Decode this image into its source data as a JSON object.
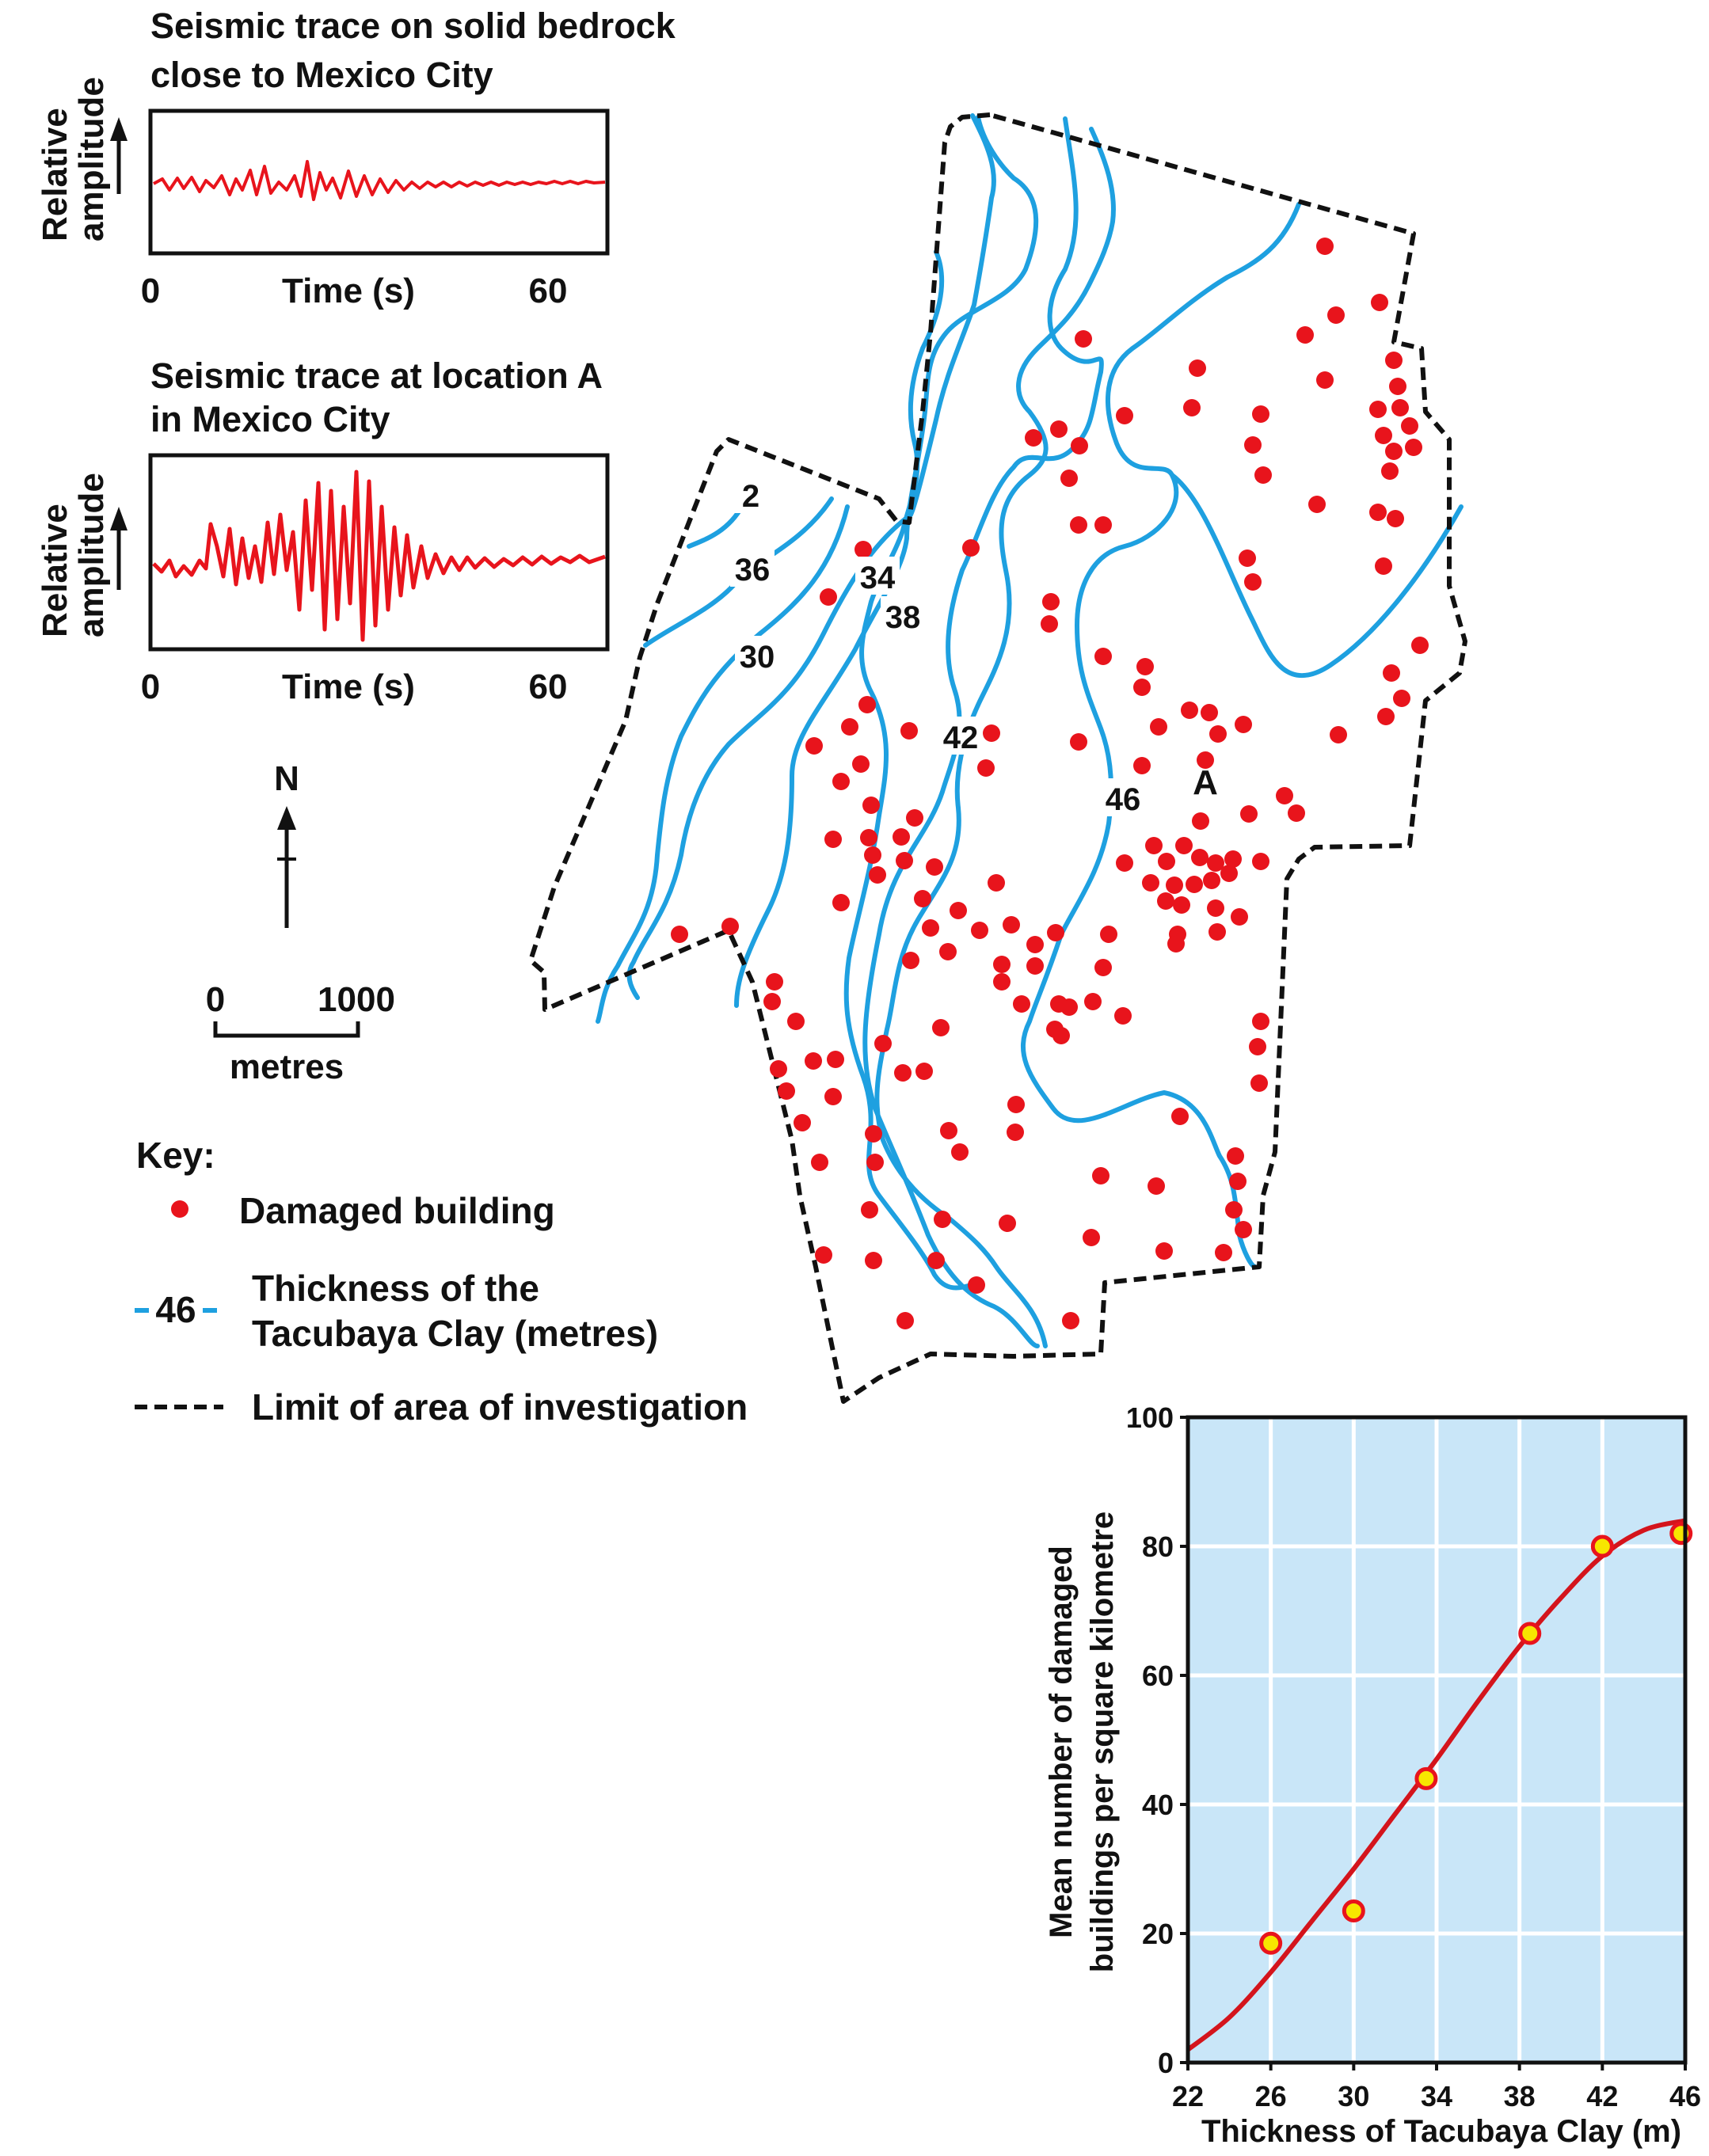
{
  "trace_top": {
    "title_line1": "Seismic trace on solid bedrock",
    "title_line2": "close to Mexico City",
    "ylabel_line1": "Relative",
    "ylabel_line2": "amplitude",
    "xlabel": "Time (s)",
    "tick_0": "0",
    "tick_60": "60"
  },
  "trace_bottom": {
    "title_line1": "Seismic trace at location A",
    "title_line2": "in Mexico City",
    "ylabel_line1": "Relative",
    "ylabel_line2": "amplitude",
    "xlabel": "Time (s)",
    "tick_0": "0",
    "tick_60": "60"
  },
  "north_label": "N",
  "scale": {
    "start": "0",
    "end": "1000",
    "unit": "metres"
  },
  "key": {
    "title": "Key:",
    "damaged": "Damaged building",
    "contour_sample": "46",
    "contour_line1": "Thickness of the",
    "contour_line2": "Tacubaya Clay (metres)",
    "limit": "Limit of area of investigation"
  },
  "map": {
    "contour_labels": [
      "2",
      "36",
      "34",
      "38",
      "30",
      "42",
      "46"
    ],
    "location_label": "A"
  },
  "colors": {
    "trace": "#e8141c",
    "contour": "#1ea0e0",
    "dot": "#e8141c",
    "plot_bg": "#c9e6f8",
    "grid": "#ffffff",
    "boundary": "#111111"
  },
  "chart_data": {
    "type": "scatter",
    "xlabel": "Thickness of Tacubaya Clay (m)",
    "ylabel_line1": "Mean number of damaged",
    "ylabel_line2": "buildings per square kilometre",
    "xlim": [
      22,
      46
    ],
    "ylim": [
      0,
      100
    ],
    "x_ticks": [
      "22",
      "26",
      "30",
      "34",
      "38",
      "42",
      "46"
    ],
    "y_ticks": [
      "0",
      "20",
      "40",
      "60",
      "80",
      "100"
    ],
    "grid": true,
    "points": [
      {
        "x": 26,
        "y": 18.5
      },
      {
        "x": 30,
        "y": 23.5
      },
      {
        "x": 33.5,
        "y": 44
      },
      {
        "x": 38.5,
        "y": 66.5
      },
      {
        "x": 42,
        "y": 80
      },
      {
        "x": 45.8,
        "y": 82
      }
    ],
    "trend": [
      {
        "x": 22,
        "y": 2
      },
      {
        "x": 24,
        "y": 7
      },
      {
        "x": 26,
        "y": 14
      },
      {
        "x": 28,
        "y": 22
      },
      {
        "x": 30,
        "y": 30
      },
      {
        "x": 32,
        "y": 38.5
      },
      {
        "x": 34,
        "y": 47
      },
      {
        "x": 36,
        "y": 56
      },
      {
        "x": 38,
        "y": 64.5
      },
      {
        "x": 40,
        "y": 72
      },
      {
        "x": 42,
        "y": 78.5
      },
      {
        "x": 44,
        "y": 82.5
      },
      {
        "x": 46,
        "y": 84
      }
    ]
  }
}
